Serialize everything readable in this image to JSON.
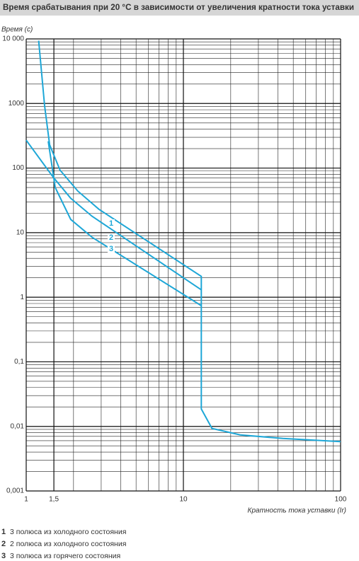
{
  "chart_data": {
    "type": "line",
    "title": "Время срабатывания при 20 °С в зависимости от увеличения кратности тока уставки",
    "ylabel": "Время (с)",
    "xlabel": "Кратность тока уставки (Ir)",
    "xlog": true,
    "ylog": true,
    "grid": true,
    "minor_grid": true,
    "xlim": [
      1,
      100
    ],
    "ylim": [
      0.001,
      10000
    ],
    "xticks": [
      1,
      {
        "value": 1.5,
        "label": "1,5"
      },
      10,
      100
    ],
    "yticks": [
      {
        "value": 10000,
        "label": "10 000"
      },
      1000,
      100,
      10,
      1,
      {
        "value": 0.1,
        "label": "0,1"
      },
      {
        "value": 0.01,
        "label": "0,01"
      },
      {
        "value": 0.001,
        "label": "0,001"
      }
    ],
    "series": [
      {
        "label": "1",
        "name": "3 полюса из холодного состояния",
        "color": "#1ea7d7",
        "x": [
          1.2,
          1.31,
          1.41,
          1.64,
          2.13,
          2.9,
          13,
          13,
          15.2,
          23,
          43,
          100
        ],
        "values": [
          9400,
          920,
          230,
          93,
          44,
          23,
          2.1,
          0.0186,
          0.0093,
          0.0074,
          0.0065,
          0.0058
        ]
      },
      {
        "label": "2",
        "name": "2 полюса из холодного состояния",
        "color": "#1ea7d7",
        "x": [
          1,
          1.48,
          1.92,
          2.62,
          13
        ],
        "values": [
          270,
          73,
          34,
          18,
          1.3
        ]
      },
      {
        "label": "3",
        "name": "3 полюса из горячего состояния",
        "color": "#1ea7d7",
        "x": [
          1.38,
          1.53,
          1.92,
          2.62,
          13
        ],
        "values": [
          260,
          50,
          16,
          8.5,
          0.74
        ]
      }
    ]
  }
}
